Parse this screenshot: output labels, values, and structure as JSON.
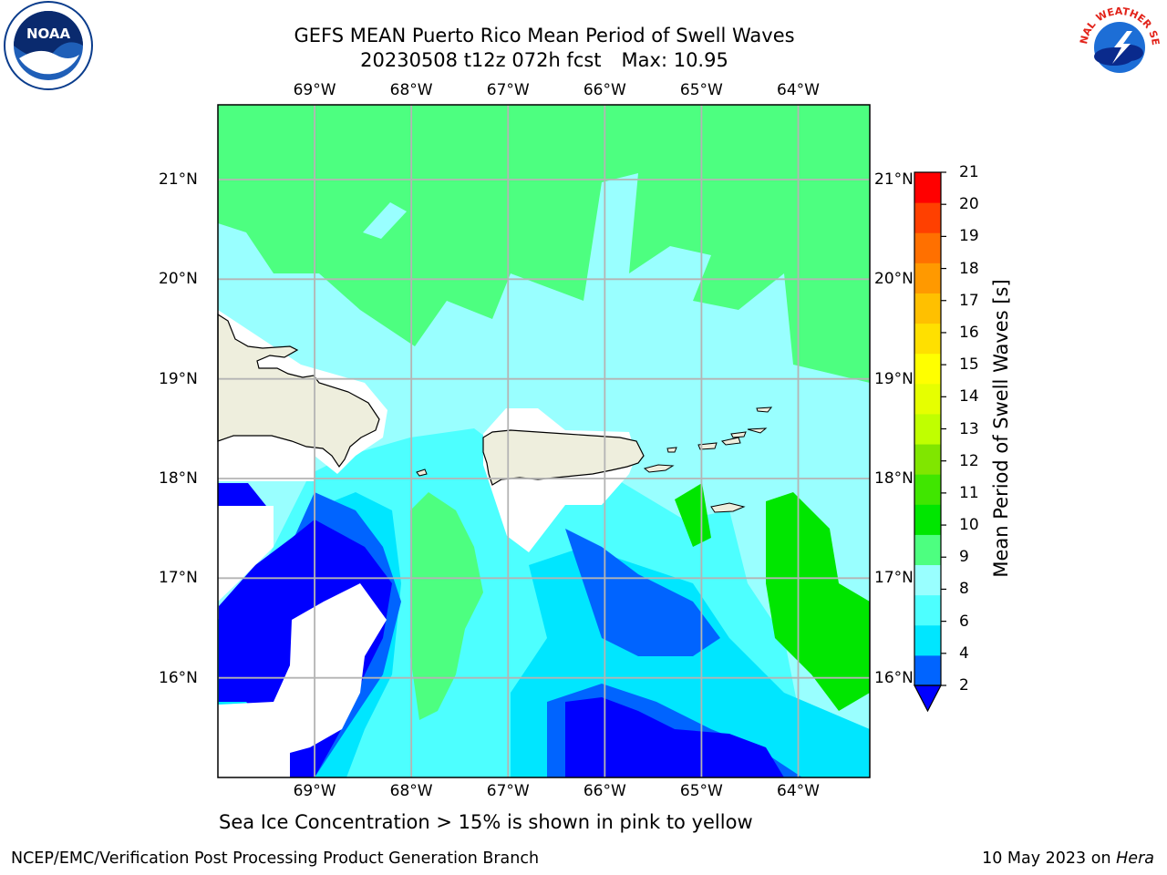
{
  "header": {
    "title_line1": "GEFS MEAN Puerto Rico Mean Period of Swell Waves",
    "title_line2_date": "20230508 t12z 072h fcst",
    "title_line2_max": "Max: 10.95"
  },
  "logos": {
    "left": "noara-logo",
    "left_text": "NOAA",
    "right": "national-weather-service-logo",
    "right_text": "NATIONAL WEATHER SERVICE"
  },
  "map": {
    "lon_labels": [
      "69°W",
      "68°W",
      "67°W",
      "66°W",
      "65°W",
      "64°W"
    ],
    "lat_labels": [
      "21°N",
      "20°N",
      "19°N",
      "18°N",
      "17°N",
      "16°N"
    ],
    "lon_values": [
      -69,
      -68,
      -67,
      -66,
      -65,
      -64
    ],
    "lat_values": [
      21,
      20,
      19,
      18,
      17,
      16
    ],
    "extent": {
      "lon_min": -70.0,
      "lon_max": -63.26,
      "lat_min": 15.0,
      "lat_max": 21.75
    },
    "land_color": "#eeeedd",
    "grid_color": "#b4b4b4"
  },
  "colorbar": {
    "label": "Mean Period of Swell Waves [s]",
    "ticks": [
      "21",
      "20",
      "19",
      "18",
      "17",
      "16",
      "15",
      "14",
      "13",
      "12",
      "11",
      "10",
      "9",
      "8",
      "6",
      "4",
      "2"
    ],
    "levels": [
      2,
      4,
      6,
      8,
      9,
      10,
      11,
      12,
      13,
      14,
      15,
      16,
      17,
      18,
      19,
      20,
      21
    ],
    "colors": [
      "#0064ff",
      "#00e6ff",
      "#4dffff",
      "#99ffff",
      "#4dff80",
      "#00e600",
      "#40e600",
      "#80e600",
      "#c0ff00",
      "#e6ff00",
      "#ffff00",
      "#ffe000",
      "#ffc000",
      "#ff9900",
      "#ff7000",
      "#ff4000",
      "#ff0000"
    ],
    "under_color": "#0000ff"
  },
  "notes": {
    "sea_ice": "Sea Ice Concentration > 15% is shown in pink to yellow"
  },
  "footer": {
    "left": "NCEP/EMC/Verification Post Processing Product Generation Branch",
    "date": "10 May 2023 on",
    "machine": "Hera"
  }
}
